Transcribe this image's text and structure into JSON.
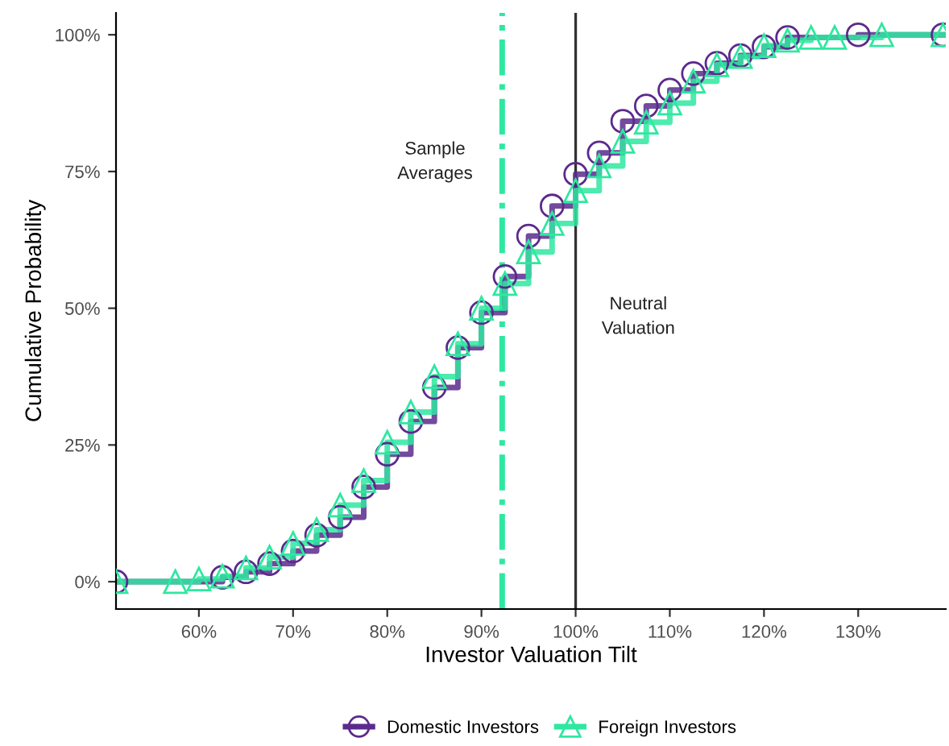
{
  "chart_data": {
    "type": "step",
    "xlabel": "Investor Valuation Tilt",
    "ylabel": "Cumulative Probability",
    "series": [
      {
        "name": "Domestic Investors",
        "color": "#5b2a8c",
        "x": [
          0.512,
          0.625,
          0.65,
          0.675,
          0.7,
          0.725,
          0.75,
          0.775,
          0.8,
          0.825,
          0.85,
          0.875,
          0.9,
          0.925,
          0.95,
          0.975,
          1.0,
          1.025,
          1.05,
          1.075,
          1.1,
          1.125,
          1.15,
          1.175,
          1.2,
          1.225,
          1.3,
          1.39
        ],
        "values": [
          0.0,
          0.008,
          0.018,
          0.033,
          0.056,
          0.085,
          0.118,
          0.173,
          0.233,
          0.293,
          0.355,
          0.428,
          0.492,
          0.558,
          0.632,
          0.687,
          0.745,
          0.784,
          0.842,
          0.87,
          0.899,
          0.929,
          0.948,
          0.962,
          0.978,
          0.995,
          1.0,
          1.0
        ],
        "marker": "circle"
      },
      {
        "name": "Foreign Investors",
        "color": "#2ee8a0",
        "x": [
          0.512,
          0.575,
          0.6,
          0.625,
          0.65,
          0.675,
          0.7,
          0.725,
          0.75,
          0.775,
          0.8,
          0.825,
          0.85,
          0.875,
          0.9,
          0.925,
          0.95,
          0.975,
          1.0,
          1.025,
          1.05,
          1.075,
          1.1,
          1.125,
          1.15,
          1.175,
          1.2,
          1.225,
          1.25,
          1.275,
          1.325,
          1.39
        ],
        "values": [
          0.0,
          0.0,
          0.005,
          0.01,
          0.025,
          0.045,
          0.07,
          0.095,
          0.14,
          0.185,
          0.255,
          0.31,
          0.375,
          0.435,
          0.5,
          0.545,
          0.603,
          0.655,
          0.715,
          0.76,
          0.805,
          0.84,
          0.875,
          0.915,
          0.945,
          0.96,
          0.98,
          0.99,
          0.995,
          0.995,
          1.0,
          1.0
        ],
        "marker": "triangle"
      }
    ],
    "xlim": [
      0.512,
      1.393
    ],
    "ylim": [
      -0.05,
      1.04
    ],
    "xticks": [
      {
        "value": 0.6,
        "label": "60%"
      },
      {
        "value": 0.7,
        "label": "70%"
      },
      {
        "value": 0.8,
        "label": "80%"
      },
      {
        "value": 0.9,
        "label": "90%"
      },
      {
        "value": 1.0,
        "label": "100%"
      },
      {
        "value": 1.1,
        "label": "110%"
      },
      {
        "value": 1.2,
        "label": "120%"
      },
      {
        "value": 1.3,
        "label": "130%"
      }
    ],
    "yticks": [
      {
        "value": 0,
        "label": "0%"
      },
      {
        "value": 0.25,
        "label": "25%"
      },
      {
        "value": 0.5,
        "label": "50%"
      },
      {
        "value": 0.75,
        "label": "75%"
      },
      {
        "value": 1.0,
        "label": "100%"
      }
    ],
    "ref_lines": [
      {
        "axis": "x",
        "value": 0.922,
        "color": "#2ee8a0",
        "line_style": "dashdot",
        "label": "Sample\nAverages"
      },
      {
        "axis": "x",
        "value": 1.0,
        "color": "#333333",
        "line_style": "solid",
        "label": "Neutral\nValuation"
      }
    ],
    "grid": false,
    "legend": "bottom"
  }
}
